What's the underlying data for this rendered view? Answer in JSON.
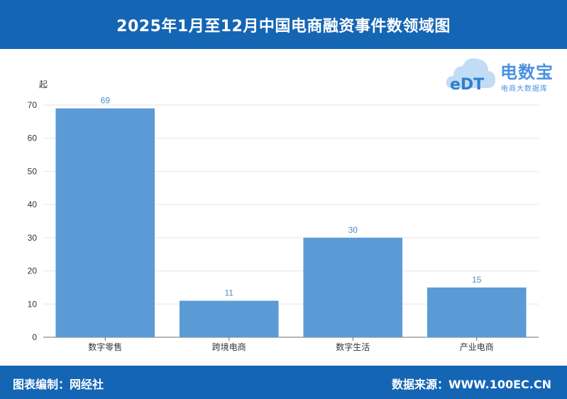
{
  "header": {
    "title": "2025年1月至12月中国电商融资事件数领域图"
  },
  "logo": {
    "name": "电数宝",
    "subtitle": "电商大数据库",
    "mark_text": "eDT"
  },
  "footer": {
    "left": "图表编制：网经社",
    "right": "数据来源：WWW.100EC.CN"
  },
  "colors": {
    "header_bg": "#1565b5",
    "bar": "#5b9bd5",
    "data_label": "#4a90c8"
  },
  "chart_data": {
    "type": "bar",
    "title": "2025年1月至12月中国电商融资事件数领域图",
    "xlabel": "",
    "ylabel": "起",
    "categories": [
      "数字零售",
      "跨境电商",
      "数字生活",
      "产业电商"
    ],
    "values": [
      69,
      11,
      30,
      15
    ],
    "ylim": [
      0,
      70
    ],
    "yticks": [
      0,
      10,
      20,
      30,
      40,
      50,
      60,
      70
    ],
    "grid": true,
    "legend": "none"
  }
}
